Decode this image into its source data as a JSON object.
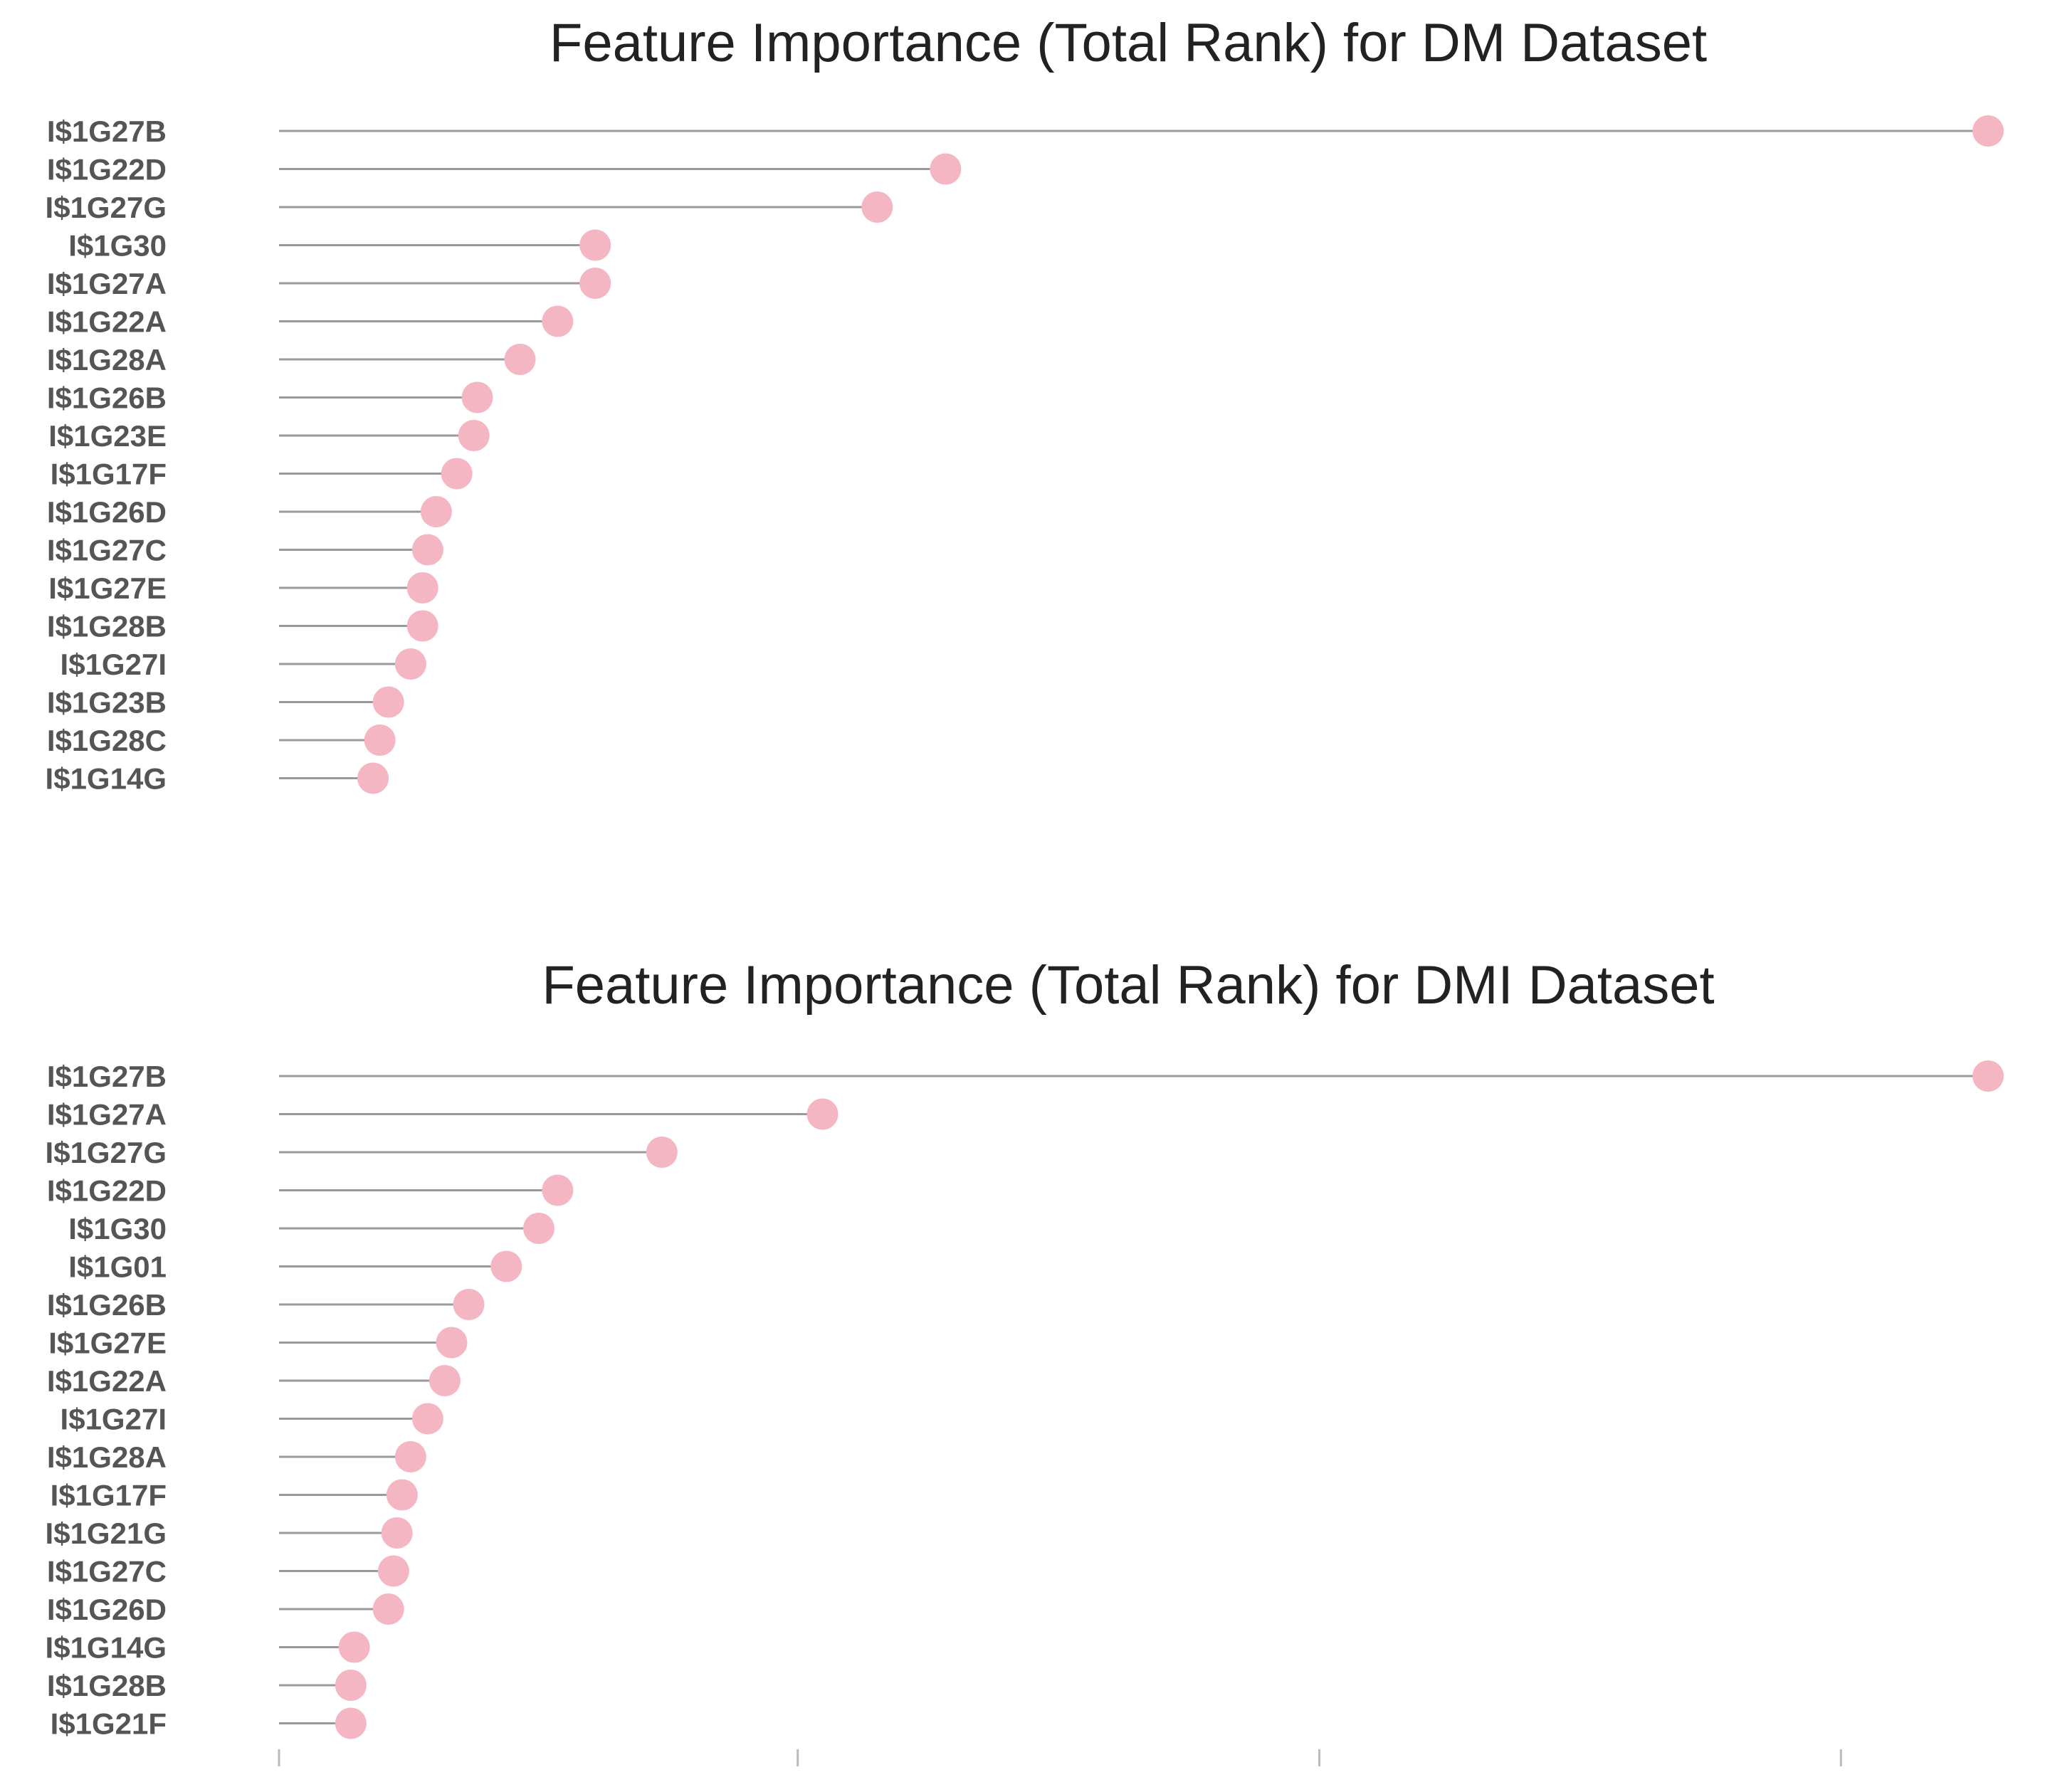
{
  "colors": {
    "point": "#f4b6c2",
    "stem": "#9a9a9a",
    "title": "#222222",
    "label": "#555555"
  },
  "chart_data": [
    {
      "type": "lollipop",
      "orientation": "horizontal",
      "title": "Feature Importance (Total Rank) for DM Dataset",
      "xlim": [
        0,
        1
      ],
      "grid": false,
      "categories": [
        "I$1G27B",
        "I$1G22D",
        "I$1G27G",
        "I$1G30",
        "I$1G27A",
        "I$1G22A",
        "I$1G28A",
        "I$1G26B",
        "I$1G23E",
        "I$1G17F",
        "I$1G26D",
        "I$1G27C",
        "I$1G27E",
        "I$1G28B",
        "I$1G27I",
        "I$1G23B",
        "I$1G28C",
        "I$1G14G"
      ],
      "values": [
        1.0,
        0.39,
        0.35,
        0.185,
        0.185,
        0.163,
        0.141,
        0.116,
        0.114,
        0.104,
        0.092,
        0.087,
        0.084,
        0.084,
        0.077,
        0.064,
        0.059,
        0.055
      ]
    },
    {
      "type": "lollipop",
      "orientation": "horizontal",
      "title": "Feature Importance (Total Rank) for DMI Dataset",
      "xlim": [
        0,
        1
      ],
      "grid": false,
      "categories": [
        "I$1G27B",
        "I$1G27A",
        "I$1G27G",
        "I$1G22D",
        "I$1G30",
        "I$1G01",
        "I$1G26B",
        "I$1G27E",
        "I$1G22A",
        "I$1G27I",
        "I$1G28A",
        "I$1G17F",
        "I$1G21G",
        "I$1G27C",
        "I$1G26D",
        "I$1G14G",
        "I$1G28B",
        "I$1G21F"
      ],
      "values": [
        1.0,
        0.318,
        0.224,
        0.163,
        0.152,
        0.133,
        0.111,
        0.101,
        0.097,
        0.087,
        0.077,
        0.072,
        0.069,
        0.067,
        0.064,
        0.044,
        0.042,
        0.042
      ]
    }
  ]
}
